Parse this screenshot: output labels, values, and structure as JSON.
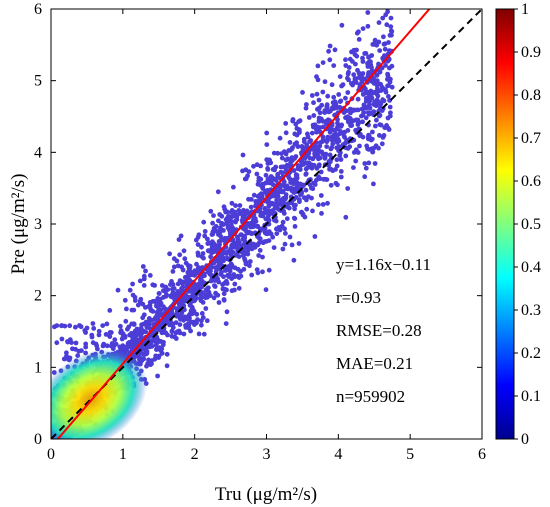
{
  "chart_data": {
    "type": "scatter",
    "subtype": "density-scatter",
    "xlabel": "Tru (μg/m²/s)",
    "ylabel": "Pre (μg/m²/s)",
    "xlim": [
      0,
      6
    ],
    "ylim": [
      0,
      6
    ],
    "xticks": [
      0,
      1,
      2,
      3,
      4,
      5,
      6
    ],
    "yticks": [
      0,
      1,
      2,
      3,
      4,
      5,
      6
    ],
    "grid": false,
    "reference_line": {
      "slope": 1,
      "intercept": 0,
      "style": "dashed",
      "color": "#000000"
    },
    "fit_line": {
      "slope": 1.16,
      "intercept": -0.11,
      "color": "#ff0000"
    },
    "annotations": [
      "y=1.16x−0.11",
      "r=0.93",
      "RMSE=0.28",
      "MAE=0.21",
      "n=959902"
    ],
    "colorbar": {
      "colormap": "jet",
      "min": 0,
      "max": 1,
      "ticks": [
        0,
        0.1,
        0.2,
        0.3,
        0.4,
        0.5,
        0.6,
        0.7,
        0.8,
        0.9,
        1
      ]
    },
    "point_density_hotspot": {
      "x": 0.55,
      "y": 0.55
    },
    "points_count": 959902
  }
}
